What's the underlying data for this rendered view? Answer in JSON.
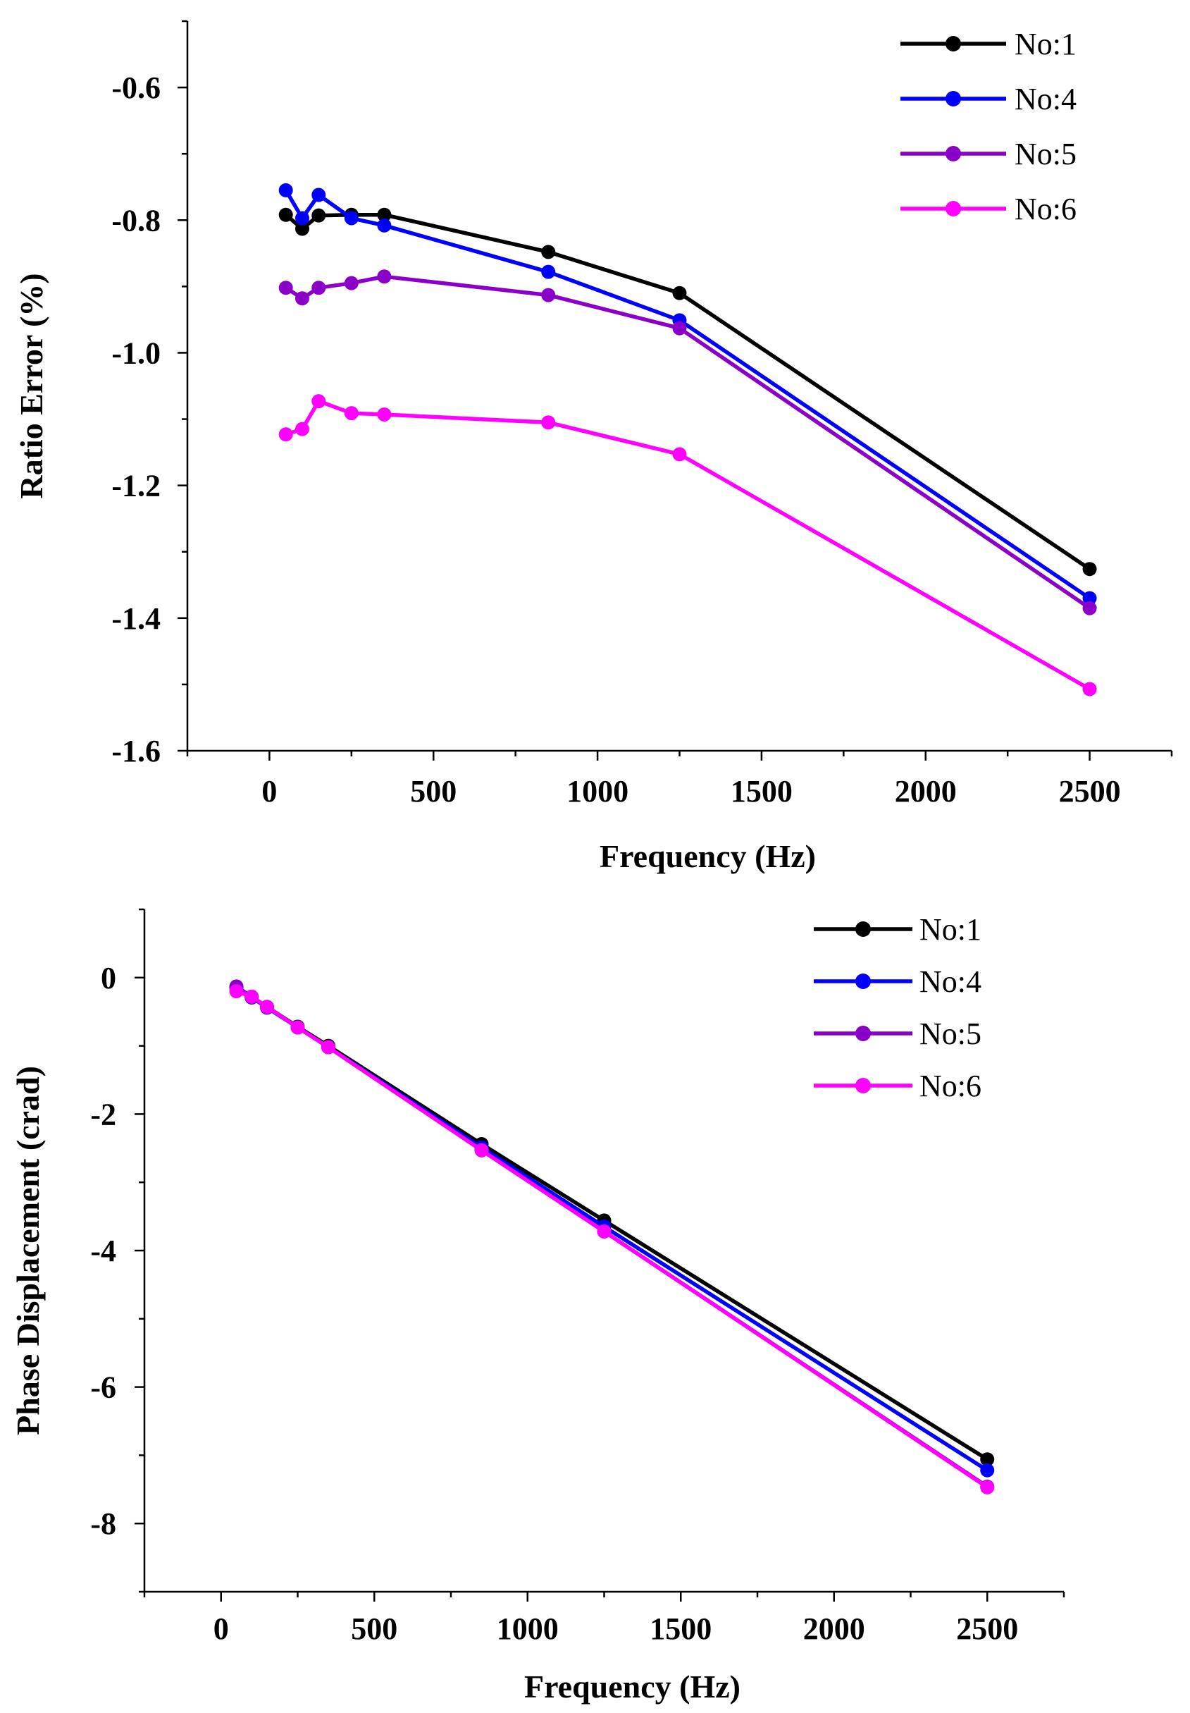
{
  "chart_data": [
    {
      "type": "line",
      "title": "",
      "xlabel": "Frequency (Hz)",
      "ylabel": "Ratio Error (%)",
      "xlim": [
        -250,
        2750
      ],
      "ylim": [
        -1.6,
        -0.5
      ],
      "xticks": [
        0,
        500,
        1000,
        1500,
        2000,
        2500
      ],
      "xtick_labels": [
        "0",
        "500",
        "1000",
        "1500",
        "2000",
        "2500"
      ],
      "yticks": [
        -0.6,
        -0.8,
        -1.0,
        -1.2,
        -1.4,
        -1.6
      ],
      "ytick_labels": [
        "-0.6",
        "-0.8",
        "-1.0",
        "-1.2",
        "-1.4",
        "-1.6"
      ],
      "grid": false,
      "legend_position": "top-right",
      "x": [
        50,
        100,
        150,
        250,
        350,
        850,
        1250,
        2500
      ],
      "series": [
        {
          "name": "No:1",
          "color": "#000000",
          "values": [
            -0.792,
            -0.813,
            -0.793,
            -0.792,
            -0.792,
            -0.848,
            -0.91,
            -1.326
          ]
        },
        {
          "name": "No:4",
          "color": "#0000ff",
          "values": [
            -0.755,
            -0.797,
            -0.762,
            -0.797,
            -0.808,
            -0.878,
            -0.951,
            -1.37
          ]
        },
        {
          "name": "No:5",
          "color": "#8b00c8",
          "values": [
            -0.902,
            -0.918,
            -0.902,
            -0.895,
            -0.885,
            -0.913,
            -0.963,
            -1.385
          ]
        },
        {
          "name": "No:6",
          "color": "#ff00ff",
          "values": [
            -1.123,
            -1.115,
            -1.073,
            -1.091,
            -1.093,
            -1.105,
            -1.153,
            -1.507
          ]
        }
      ]
    },
    {
      "type": "line",
      "title": "",
      "xlabel": "Frequency (Hz)",
      "ylabel": "Phase Displacement (crad)",
      "xlim": [
        -250,
        2750
      ],
      "ylim": [
        -9,
        1
      ],
      "xticks": [
        0,
        500,
        1000,
        1500,
        2000,
        2500
      ],
      "xtick_labels": [
        "0",
        "500",
        "1000",
        "1500",
        "2000",
        "2500"
      ],
      "yticks": [
        0,
        -2,
        -4,
        -6,
        -8
      ],
      "ytick_labels": [
        "0",
        "-2",
        "-4",
        "-6",
        "-8"
      ],
      "grid": false,
      "legend_position": "top-right",
      "x": [
        50,
        100,
        150,
        250,
        350,
        850,
        1250,
        2500
      ],
      "series": [
        {
          "name": "No:1",
          "color": "#000000",
          "values": [
            -0.14,
            -0.29,
            -0.43,
            -0.72,
            -1.0,
            -2.44,
            -3.56,
            -7.06
          ]
        },
        {
          "name": "No:4",
          "color": "#0000ff",
          "values": [
            -0.15,
            -0.29,
            -0.44,
            -0.73,
            -1.02,
            -2.49,
            -3.65,
            -7.22
          ]
        },
        {
          "name": "No:5",
          "color": "#8b00c8",
          "values": [
            -0.13,
            -0.28,
            -0.43,
            -0.73,
            -1.02,
            -2.53,
            -3.72,
            -7.46
          ]
        },
        {
          "name": "No:6",
          "color": "#ff00ff",
          "values": [
            -0.2,
            -0.28,
            -0.43,
            -0.73,
            -1.02,
            -2.53,
            -3.72,
            -7.47
          ]
        }
      ]
    }
  ]
}
